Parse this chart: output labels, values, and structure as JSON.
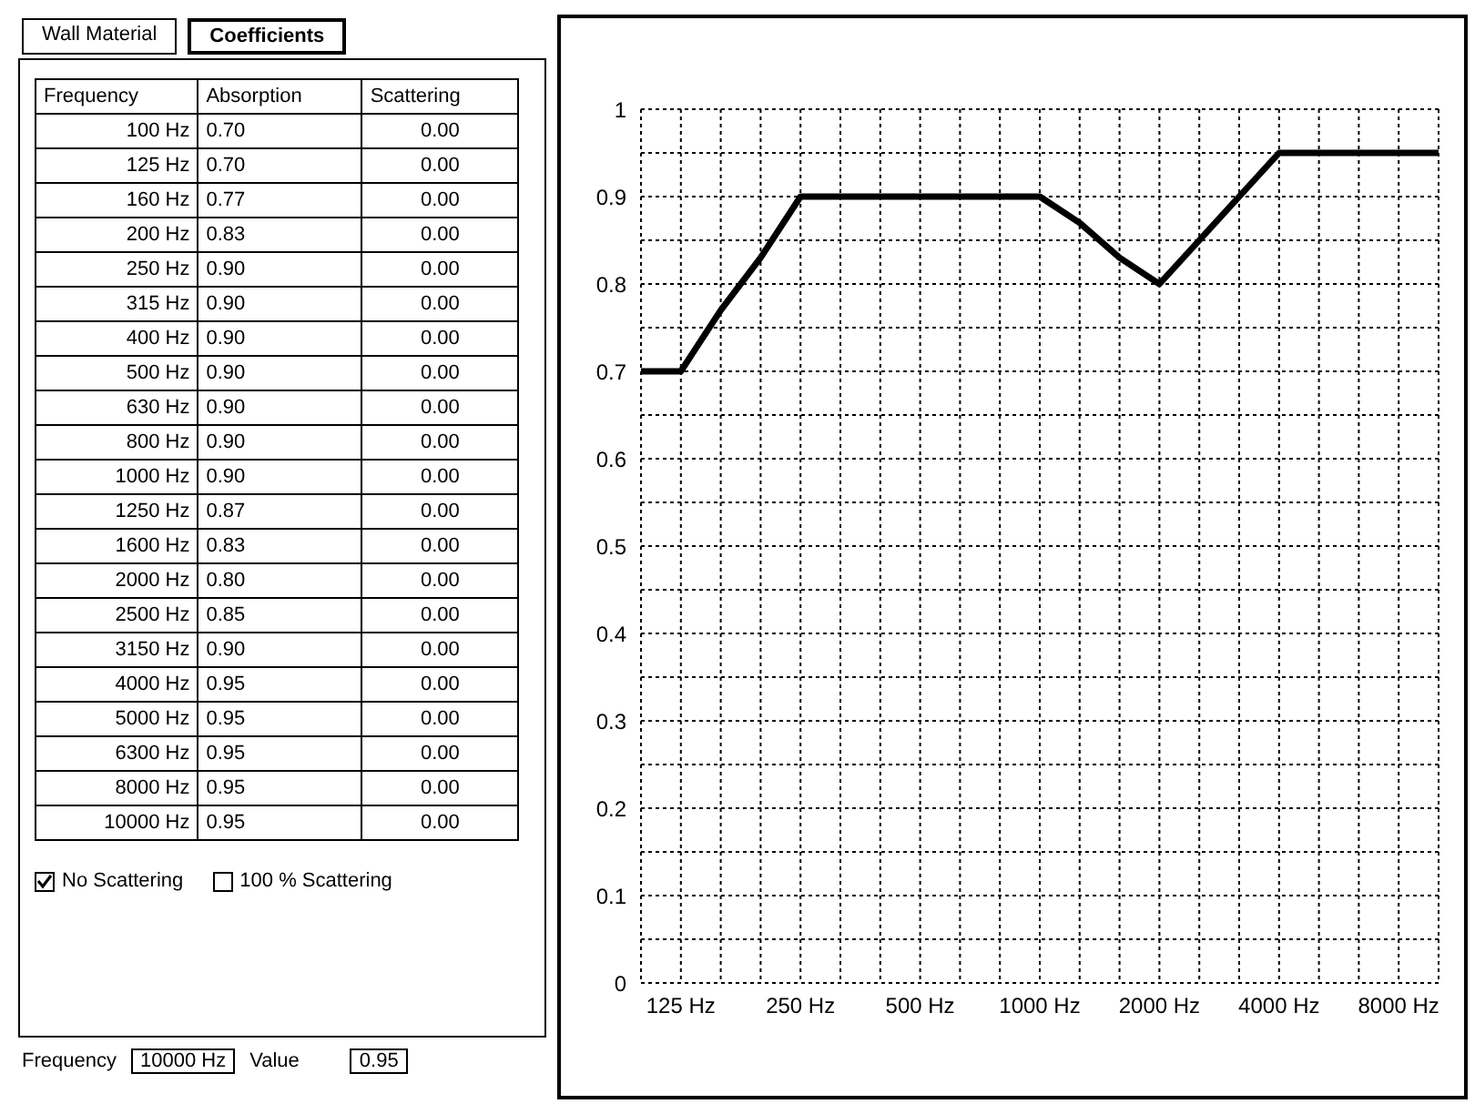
{
  "chart_data": [
    {
      "type": "other",
      "annotations": [
        "Wall Material",
        "Coefficients",
        "Frequency",
        "Absorption",
        "Scattering",
        "100 Hz",
        "0.70",
        "0.00",
        "125 Hz",
        "0.70",
        "0.00",
        "160 Hz",
        "0.77",
        "0.00",
        "200 Hz",
        "0.83",
        "0.00",
        "250 Hz",
        "0.90",
        "0.00",
        "315 Hz",
        "0.90",
        "0.00",
        "400 Hz",
        "0.90",
        "0.00",
        "500 Hz",
        "0.90",
        "0.00",
        "630 Hz",
        "0.90",
        "0.00",
        "800 Hz",
        "0.90",
        "0.00",
        "1000 Hz",
        "0.90",
        "0.00",
        "1250 Hz",
        "0.87",
        "0.00",
        "1600 Hz",
        "0.83",
        "0.00",
        "2000 Hz",
        "0.80",
        "0.00",
        "2500 Hz",
        "0.85",
        "0.00",
        "3150 Hz",
        "0.90",
        "0.00",
        "4000 Hz",
        "0.95",
        "0.00",
        "5000 Hz",
        "0.95",
        "0.00",
        "6300 Hz",
        "0.95",
        "0.00",
        "8000 Hz",
        "0.95",
        "0.00",
        "10000 Hz",
        "0.95",
        "0.00",
        "No Scattering",
        "100 % Scattering",
        "Frequency",
        "10000 Hz",
        "Value",
        "0.95"
      ]
    },
    {
      "type": "line",
      "categories": [
        null,
        "125 Hz",
        null,
        null,
        "250 Hz",
        null,
        null,
        "500 Hz",
        null,
        null,
        "1000 Hz",
        null,
        null,
        "2000 Hz",
        null,
        null,
        "4000 Hz",
        null,
        null,
        "8000 Hz",
        null
      ],
      "series": [
        {
          "color": "#000000",
          "values": [
            0.7,
            0.7,
            0.77,
            0.83,
            0.9,
            0.9,
            0.9,
            0.9,
            0.9,
            0.9,
            0.9,
            0.87,
            0.83,
            0.8,
            0.85,
            0.9,
            0.95,
            0.95,
            0.95,
            0.95,
            0.95
          ]
        }
      ],
      "ylim": [
        0,
        1
      ],
      "yticks": [
        0,
        {
          "value": 0.05,
          "label": null
        },
        0.1,
        {
          "value": 0.15,
          "label": null
        },
        0.2,
        {
          "value": 0.25,
          "label": null
        },
        0.3,
        {
          "value": 0.35,
          "label": null
        },
        0.4,
        {
          "value": 0.45,
          "label": null
        },
        0.5,
        {
          "value": 0.55,
          "label": null
        },
        0.6,
        {
          "value": 0.65,
          "label": null
        },
        0.7,
        {
          "value": 0.75,
          "label": null
        },
        0.8,
        {
          "value": 0.85,
          "label": null
        },
        0.9,
        {
          "value": 0.95,
          "label": null
        },
        1
      ],
      "grid": true,
      "legend": false,
      "marker": "none",
      "line_style": "solid"
    }
  ]
}
